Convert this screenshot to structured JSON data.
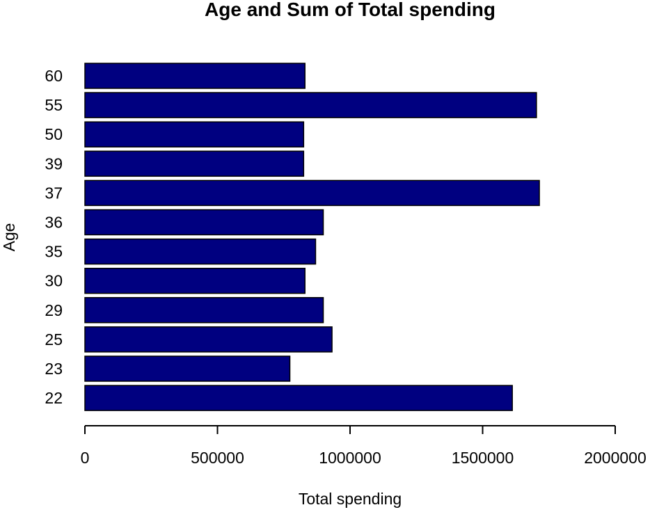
{
  "chart_data": {
    "type": "bar",
    "orientation": "horizontal",
    "title": "Age and Sum of Total spending",
    "xlabel": "Total spending",
    "ylabel": "Age",
    "categories": [
      "22",
      "23",
      "25",
      "29",
      "30",
      "35",
      "36",
      "37",
      "39",
      "50",
      "55",
      "60"
    ],
    "values": [
      1612000,
      773000,
      932000,
      899000,
      830000,
      870000,
      899000,
      1714000,
      825000,
      825000,
      1703000,
      830000
    ],
    "xlim": [
      0,
      2000000
    ],
    "xticks": [
      0,
      500000,
      1000000,
      1500000,
      2000000
    ],
    "xtick_labels": [
      "0",
      "500000",
      "1000000",
      "1500000",
      "2000000"
    ],
    "grid": false,
    "bar_color": "#000080",
    "bar_border_color": "#000000"
  }
}
